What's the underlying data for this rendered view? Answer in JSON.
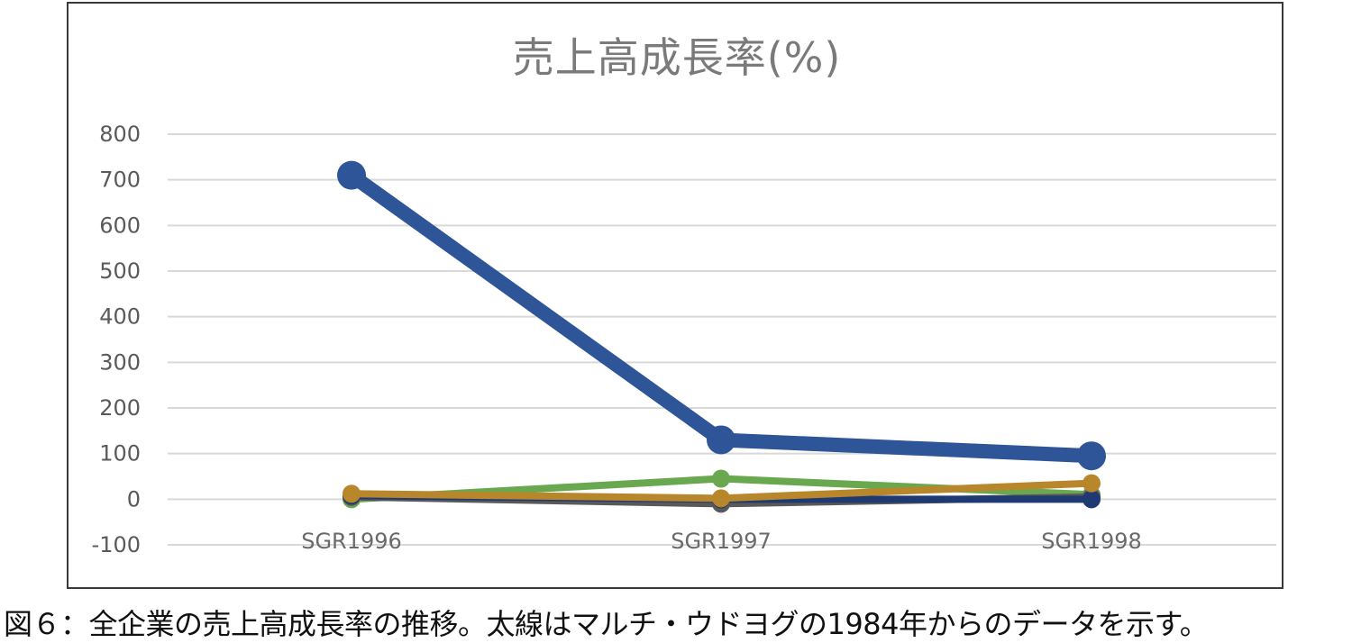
{
  "chart_data": {
    "type": "line",
    "title": "売上高成長率(%)",
    "categories": [
      "SGR1996",
      "SGR1997",
      "SGR1998"
    ],
    "ylim": [
      -100,
      800
    ],
    "yticks": [
      800,
      700,
      600,
      500,
      400,
      300,
      200,
      100,
      0,
      -100
    ],
    "grid": true,
    "legend": "none",
    "series": [
      {
        "values": [
          710,
          130,
          95
        ],
        "color": "#2E5597",
        "highlight": true
      },
      {
        "values": [
          0,
          45,
          10
        ],
        "color": "#6AA84F"
      },
      {
        "values": [
          5,
          -10,
          5
        ],
        "color": "#595959"
      },
      {
        "values": [
          8,
          0,
          0
        ],
        "color": "#1F3A73"
      },
      {
        "values": [
          12,
          2,
          35
        ],
        "color": "#B8862B"
      }
    ]
  },
  "caption": "図６：全企業の売上高成長率の推移。太線はマルチ・ウドヨグの1984年からのデータを示す。"
}
